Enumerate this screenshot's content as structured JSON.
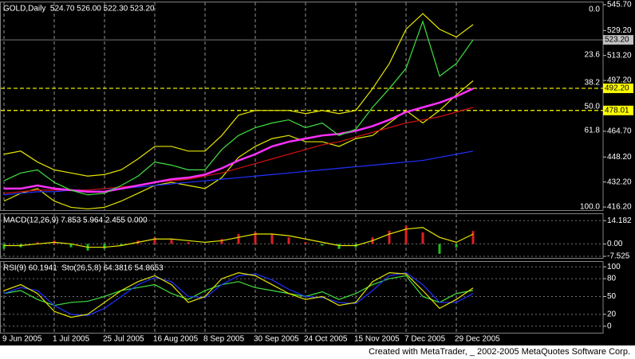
{
  "chart_data": [
    {
      "type": "line",
      "title": "GOLD,Daily  524.70 526.00 522.30 523.20",
      "ylim": [
        414.2,
        547.7
      ],
      "yticks": [
        {
          "value": 416.2,
          "label": "416.20"
        },
        {
          "value": 432.2,
          "label": "432.20"
        },
        {
          "value": 448.2,
          "label": "448.20"
        },
        {
          "value": 464.7,
          "label": "464.70"
        },
        {
          "value": 497.2,
          "label": "497.20"
        },
        {
          "value": 513.2,
          "label": "513.20"
        },
        {
          "value": 529.2,
          "label": "529.20"
        },
        {
          "value": 545.7,
          "label": "545.70"
        }
      ],
      "price_lines": [
        {
          "value": 523.2,
          "label": "523.20",
          "color": "#c0c0c0"
        },
        {
          "value": 492.2,
          "label": "492.20",
          "color": "#ffff00"
        },
        {
          "value": 478.01,
          "label": "478.01",
          "color": "#ffff00"
        }
      ],
      "fib_levels": [
        {
          "value": 542.6,
          "label": "0.0"
        },
        {
          "value": 513.6,
          "label": "23.6"
        },
        {
          "value": 495.8,
          "label": "38.2"
        },
        {
          "value": 480.5,
          "label": "50.0"
        },
        {
          "value": 465.2,
          "label": "61.8"
        },
        {
          "value": 416.2,
          "label": "100.0"
        }
      ],
      "series": [
        {
          "name": "Upper Band",
          "color": "#e6e600",
          "values": [
            450,
            452,
            445,
            440,
            438,
            436,
            437,
            440,
            447,
            455,
            455,
            452,
            452,
            462,
            475,
            478,
            478,
            478,
            476,
            478,
            476,
            478,
            492,
            508,
            530,
            540,
            530,
            525,
            533
          ]
        },
        {
          "name": "Lower Band",
          "color": "#e6e600",
          "values": [
            420,
            425,
            428,
            420,
            416,
            415,
            416,
            420,
            425,
            430,
            432,
            430,
            428,
            435,
            448,
            455,
            460,
            462,
            458,
            458,
            455,
            460,
            462,
            470,
            478,
            470,
            478,
            488,
            497
          ]
        },
        {
          "name": "MA Blue",
          "color": "#2030ff",
          "values": [
            424,
            425,
            426,
            426,
            427,
            427,
            428,
            428,
            429,
            430,
            431,
            432,
            433,
            434,
            435,
            436,
            437,
            438,
            439,
            440,
            441,
            442,
            443,
            444,
            445,
            446,
            448,
            450,
            452
          ]
        },
        {
          "name": "MA Red",
          "color": "#d01010",
          "values": [
            425,
            426,
            427,
            427,
            427,
            427,
            428,
            429,
            430,
            432,
            433,
            434,
            436,
            438,
            441,
            444,
            447,
            450,
            453,
            456,
            458,
            461,
            464,
            467,
            470,
            472,
            474,
            477,
            480
          ]
        },
        {
          "name": "MA Magenta",
          "color": "#ff30ff",
          "values": [
            428,
            428,
            430,
            428,
            427,
            426,
            426,
            428,
            430,
            432,
            434,
            435,
            437,
            441,
            446,
            450,
            455,
            458,
            460,
            462,
            463,
            465,
            468,
            472,
            477,
            480,
            483,
            487,
            492
          ]
        },
        {
          "name": "Close",
          "color": "#40e040",
          "values": [
            433,
            438,
            440,
            432,
            427,
            424,
            425,
            430,
            436,
            445,
            443,
            440,
            440,
            453,
            462,
            467,
            470,
            472,
            467,
            470,
            462,
            466,
            480,
            492,
            505,
            535,
            500,
            508,
            523.2
          ]
        }
      ]
    },
    {
      "type": "line",
      "title": "MACD(12,26,9) 7.853 5.964 2.455 0.000",
      "ylim": [
        -8.5,
        18.6
      ],
      "yticks": [
        -7.525,
        {
          "value": 0,
          "label": "0.00"
        },
        14.182
      ],
      "series": [
        {
          "name": "MACD",
          "style": "bar",
          "color": "#e02020",
          "negative_color": "#20c020",
          "values": [
            -3,
            -2,
            1,
            2,
            -2,
            -4,
            -3,
            -1,
            2,
            4,
            3,
            1,
            0,
            3,
            6,
            7,
            6,
            4,
            1,
            -1,
            -3,
            -2,
            4,
            8,
            11,
            7,
            -6,
            -2,
            7.853
          ]
        },
        {
          "name": "Signal",
          "color": "#e6e600",
          "values": [
            -1,
            -1,
            0,
            1,
            0,
            -2,
            -2,
            -1,
            1,
            3,
            3,
            2,
            1,
            2,
            4,
            6,
            6,
            5,
            3,
            1,
            -1,
            -1,
            2,
            6,
            9,
            10,
            4,
            1,
            5.964
          ]
        }
      ]
    },
    {
      "type": "line",
      "title": "RSI(9) 60.1941  Sto(26,5,8) 64.3816 54.8653",
      "ylim": [
        -11,
        109.6
      ],
      "yticks": [
        0,
        20,
        50,
        80,
        100
      ],
      "categories": [
        "9 Jun 2005",
        null,
        null,
        "1 Jul 2005",
        null,
        null,
        "25 Jul 2005",
        null,
        null,
        "16 Aug 2005",
        null,
        null,
        "8 Sep 2005",
        null,
        null,
        "30 Sep 2005",
        null,
        null,
        "24 Oct 2005",
        null,
        null,
        "15 Nov 2005",
        null,
        null,
        "7 Dec 2005",
        null,
        null,
        "29 Dec 2005",
        null
      ],
      "series": [
        {
          "name": "RSI",
          "color": "#40e040",
          "values": [
            55,
            60,
            45,
            35,
            40,
            42,
            50,
            60,
            65,
            70,
            55,
            45,
            60,
            70,
            75,
            65,
            60,
            55,
            50,
            58,
            45,
            55,
            70,
            80,
            85,
            50,
            40,
            55,
            60.1941
          ]
        },
        {
          "name": "Sto Signal",
          "color": "#2030ff",
          "values": [
            55,
            65,
            60,
            35,
            20,
            18,
            30,
            50,
            70,
            82,
            75,
            50,
            48,
            70,
            85,
            88,
            78,
            62,
            50,
            48,
            40,
            38,
            60,
            85,
            90,
            70,
            40,
            40,
            54.8653
          ]
        },
        {
          "name": "Sto",
          "color": "#e6e600",
          "values": [
            60,
            70,
            55,
            25,
            15,
            20,
            40,
            60,
            75,
            85,
            70,
            40,
            50,
            80,
            90,
            85,
            70,
            55,
            45,
            50,
            35,
            40,
            75,
            90,
            88,
            60,
            30,
            45,
            64.3816
          ]
        }
      ]
    }
  ],
  "grid": true,
  "footer": "Created with MetaTrader, _ 2002-2005 MetaQuotes Software Corp."
}
